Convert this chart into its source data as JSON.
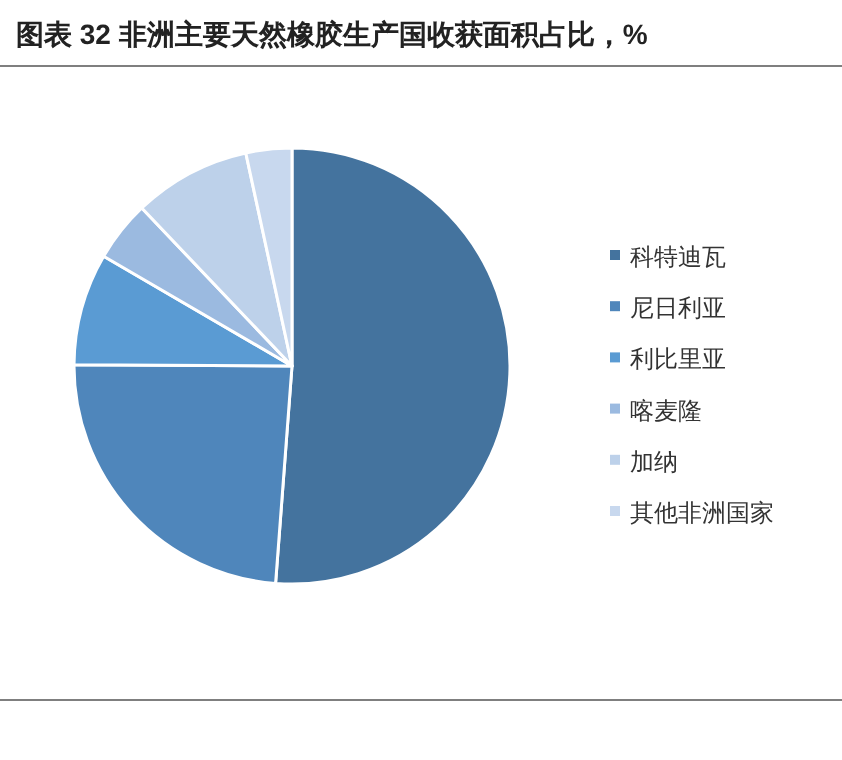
{
  "chart_data": {
    "type": "pie",
    "title": "图表 32  非洲主要天然橡胶生产国收获面积占比，%",
    "categories": [
      "科特迪瓦",
      "尼日利亚",
      "利比里亚",
      "喀麦隆",
      "加纳",
      "其他非洲国家"
    ],
    "values": [
      51.2,
      23.9,
      8.3,
      4.5,
      8.7,
      3.4
    ],
    "colors": [
      "#44739e",
      "#4f86bb",
      "#5a9bd3",
      "#9bbae0",
      "#bdd1ea",
      "#c8d8ee"
    ],
    "legend": "right"
  }
}
